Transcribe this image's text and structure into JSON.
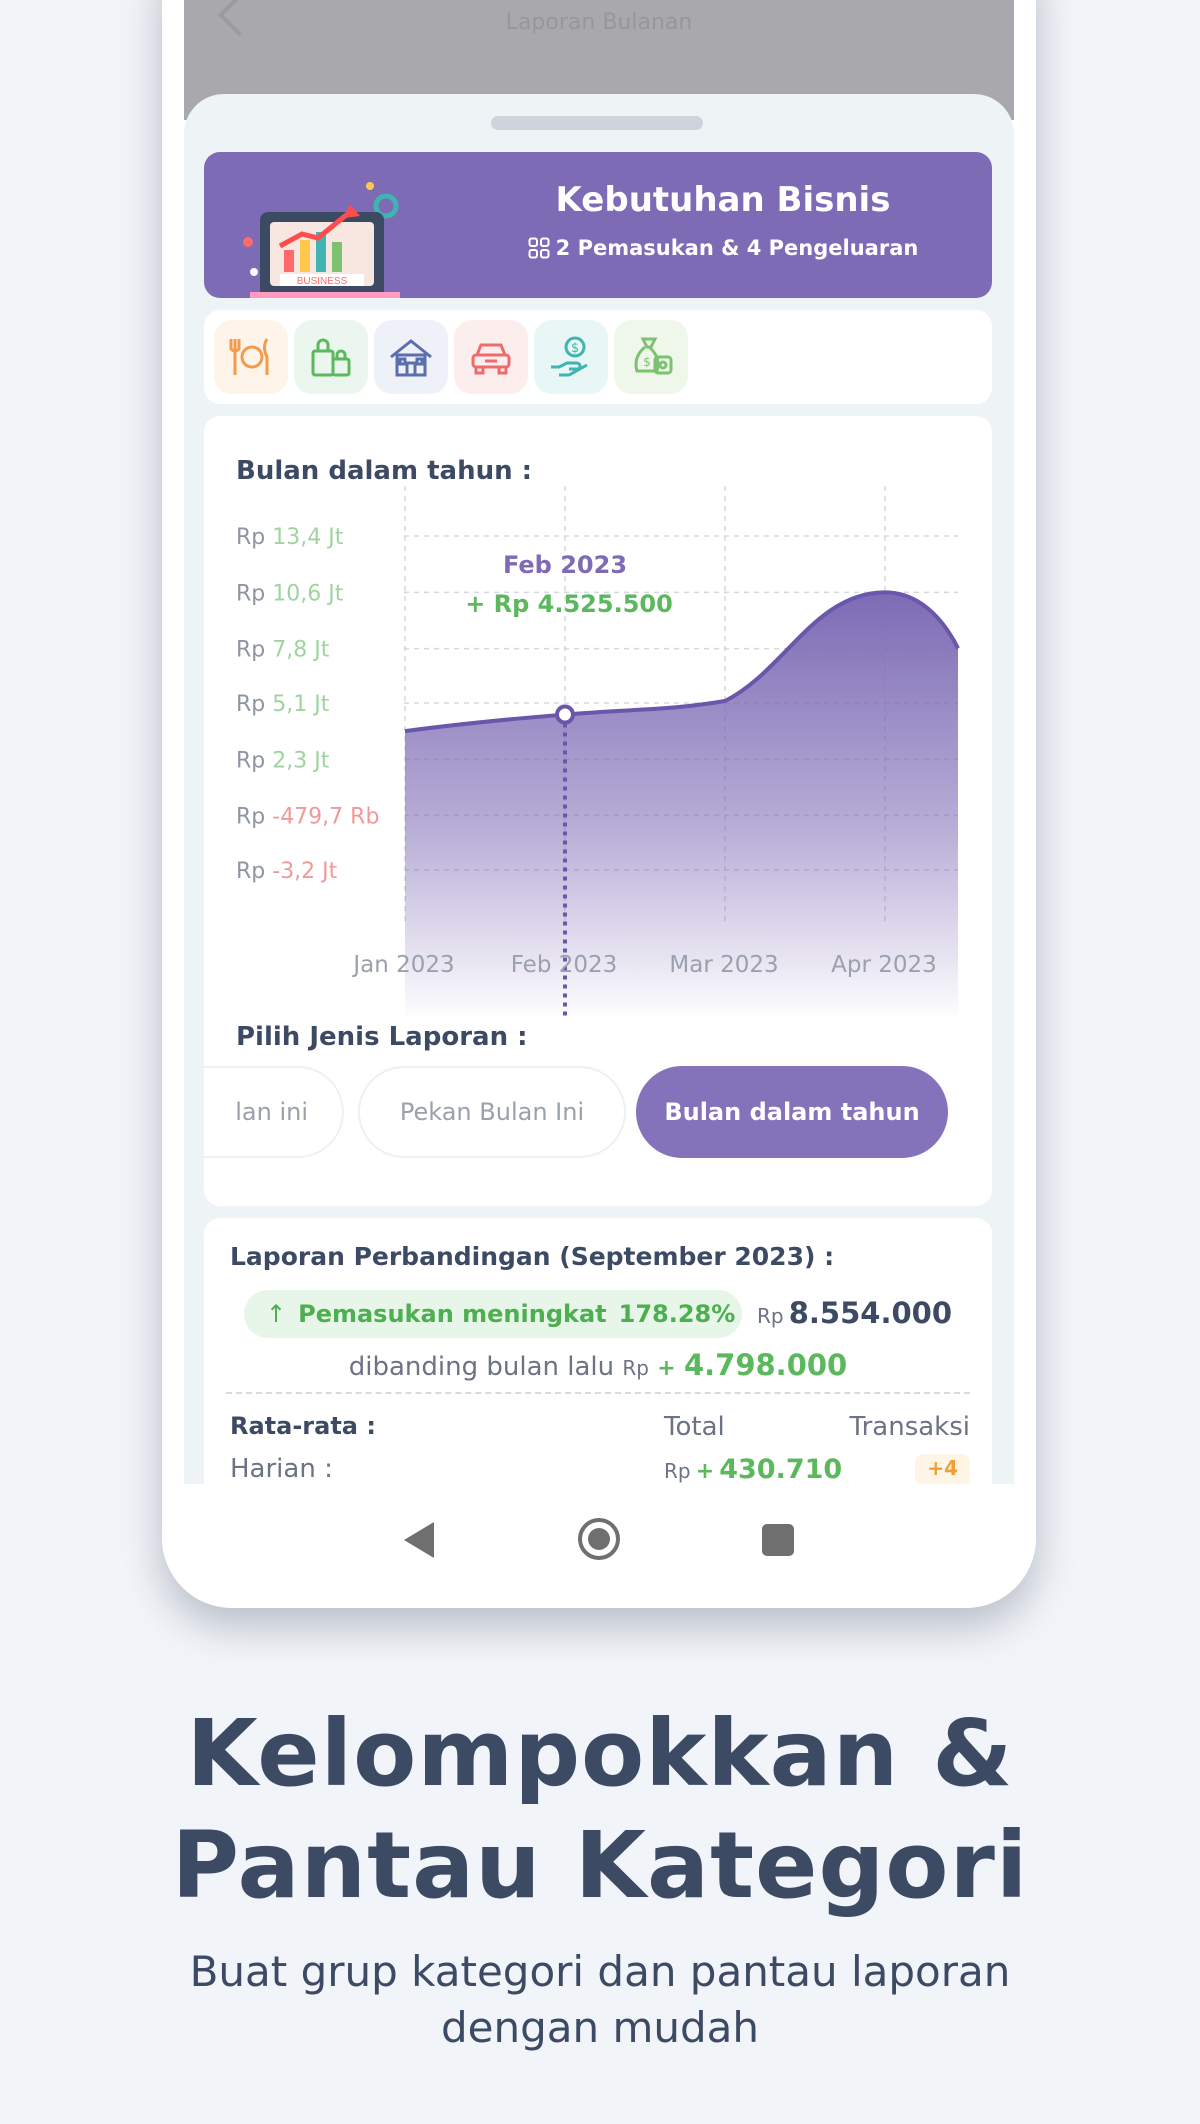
{
  "backdrop": {
    "title": "Laporan Bulanan"
  },
  "group": {
    "title": "Kebutuhan Bisnis",
    "subtitle": "2 Pemasukan & 4 Pengeluaran",
    "illustration_icon": "business-laptop-illustration"
  },
  "categories": [
    {
      "icon": "fork-knife-plate-icon",
      "color": "#f39a4c",
      "bg": "#fef4ea"
    },
    {
      "icon": "shopping-bags-icon",
      "color": "#5cb85c",
      "bg": "#eaf6ee"
    },
    {
      "icon": "house-icon",
      "color": "#5b6fae",
      "bg": "#eef1f8"
    },
    {
      "icon": "car-icon",
      "color": "#ef6b6b",
      "bg": "#fdeeee"
    },
    {
      "icon": "hand-coin-icon",
      "color": "#3fb4b0",
      "bg": "#e9f6f6"
    },
    {
      "icon": "money-bag-icon",
      "color": "#7cc270",
      "bg": "#eff7ea"
    }
  ],
  "chart": {
    "heading": "Bulan dalam tahun :",
    "tooltip_month": "Feb 2023",
    "tooltip_value": "+ Rp 4.525.500",
    "currency": "Rp"
  },
  "chart_data": {
    "type": "area",
    "x": [
      "Jan 2023",
      "Feb 2023",
      "Mar 2023",
      "Apr 2023"
    ],
    "series": [
      {
        "values": [
          3700000,
          4525500,
          5200000,
          10600000
        ]
      }
    ],
    "y_ticks": [
      "13,4 Jt",
      "10,6 Jt",
      "7,8 Jt",
      "5,1 Jt",
      "2,3 Jt",
      "-479,7 Rb",
      "-3,2 Jt"
    ],
    "y_tick_values": [
      13400000,
      10600000,
      7800000,
      5100000,
      2300000,
      -479700,
      -3200000
    ],
    "ylim": [
      -3200000,
      13400000
    ],
    "selected_index": 1,
    "grid": true,
    "color": "#7d6bb5"
  },
  "report": {
    "heading": "Pilih Jenis Laporan :",
    "options": [
      "lan ini",
      "Pekan Bulan Ini",
      "Bulan dalam tahun"
    ]
  },
  "compare": {
    "title": "Laporan Perbandingan (September 2023) :",
    "badge_label": "Pemasukan meningkat",
    "badge_pct": "178.28%",
    "currency": "Rp",
    "amount": "8.554.000",
    "vs_text": "dibanding bulan lalu",
    "vs_sign": "+",
    "vs_amount": "4.798.000",
    "avg_label": "Rata-rata :",
    "total_label": "Total",
    "trans_label": "Transaksi",
    "daily_label": "Harian :",
    "daily_sign": "+",
    "daily_amount": "430.710",
    "daily_count": "+4"
  },
  "promo": {
    "headline_line1": "Kelompokkan &",
    "headline_line2": "Pantau Kategori",
    "sub_line1": "Buat grup kategori dan pantau laporan",
    "sub_line2": "dengan mudah"
  }
}
